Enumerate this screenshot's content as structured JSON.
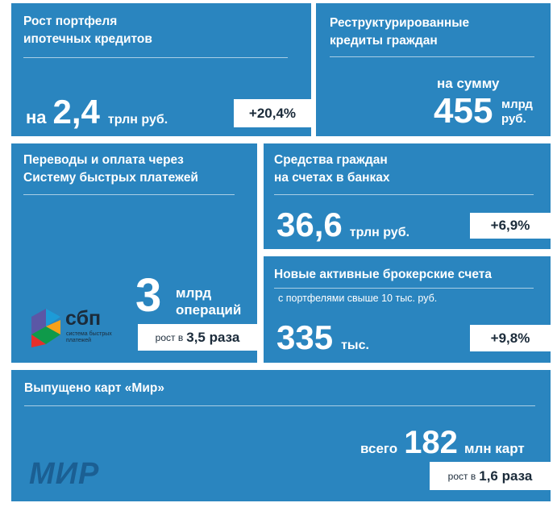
{
  "tiles": {
    "mortgage": {
      "title_line1": "Рост портфеля",
      "title_line2": "ипотечных кредитов",
      "prefix": "на",
      "value": "2,4",
      "unit": "трлн руб.",
      "badge": "+20,4%"
    },
    "restructured": {
      "title_line1": "Реструктурированные",
      "title_line2": "кредиты граждан",
      "prefix": "на сумму",
      "value": "455",
      "unit_line1": "млрд",
      "unit_line2": "руб."
    },
    "sbp": {
      "title_line1": "Переводы и оплата через",
      "title_line2": "Систему быстрых платежей",
      "value": "3",
      "unit_line1": "млрд",
      "unit_line2": "операций",
      "badge_prefix": "рост в",
      "badge_value": "3,5 раза",
      "logo_text": "сбп",
      "logo_sub_line1": "система быстрых",
      "logo_sub_line2": "платежей"
    },
    "deposits": {
      "title_line1": "Средства граждан",
      "title_line2": "на счетах  в банках",
      "value": "36,6",
      "unit": "трлн руб.",
      "badge": "+6,9%"
    },
    "brokerage": {
      "title": "Новые активные брокерские счета",
      "subtitle": "с портфелями свыше 10 тыс. руб.",
      "value": "335",
      "unit": "тыс.",
      "badge": "+9,8%"
    },
    "mir": {
      "title": "Выпущено карт «Мир»",
      "prefix": "всего",
      "value": "182",
      "unit": "млн карт",
      "badge_prefix": "рост в",
      "badge_value": "1,6 раза",
      "logo_text": "МИР"
    }
  },
  "colors": {
    "tile": "#2a85bf",
    "badge_bg": "#ffffff",
    "badge_text": "#1b2b3a",
    "mir_logo": "#1b5f93"
  }
}
